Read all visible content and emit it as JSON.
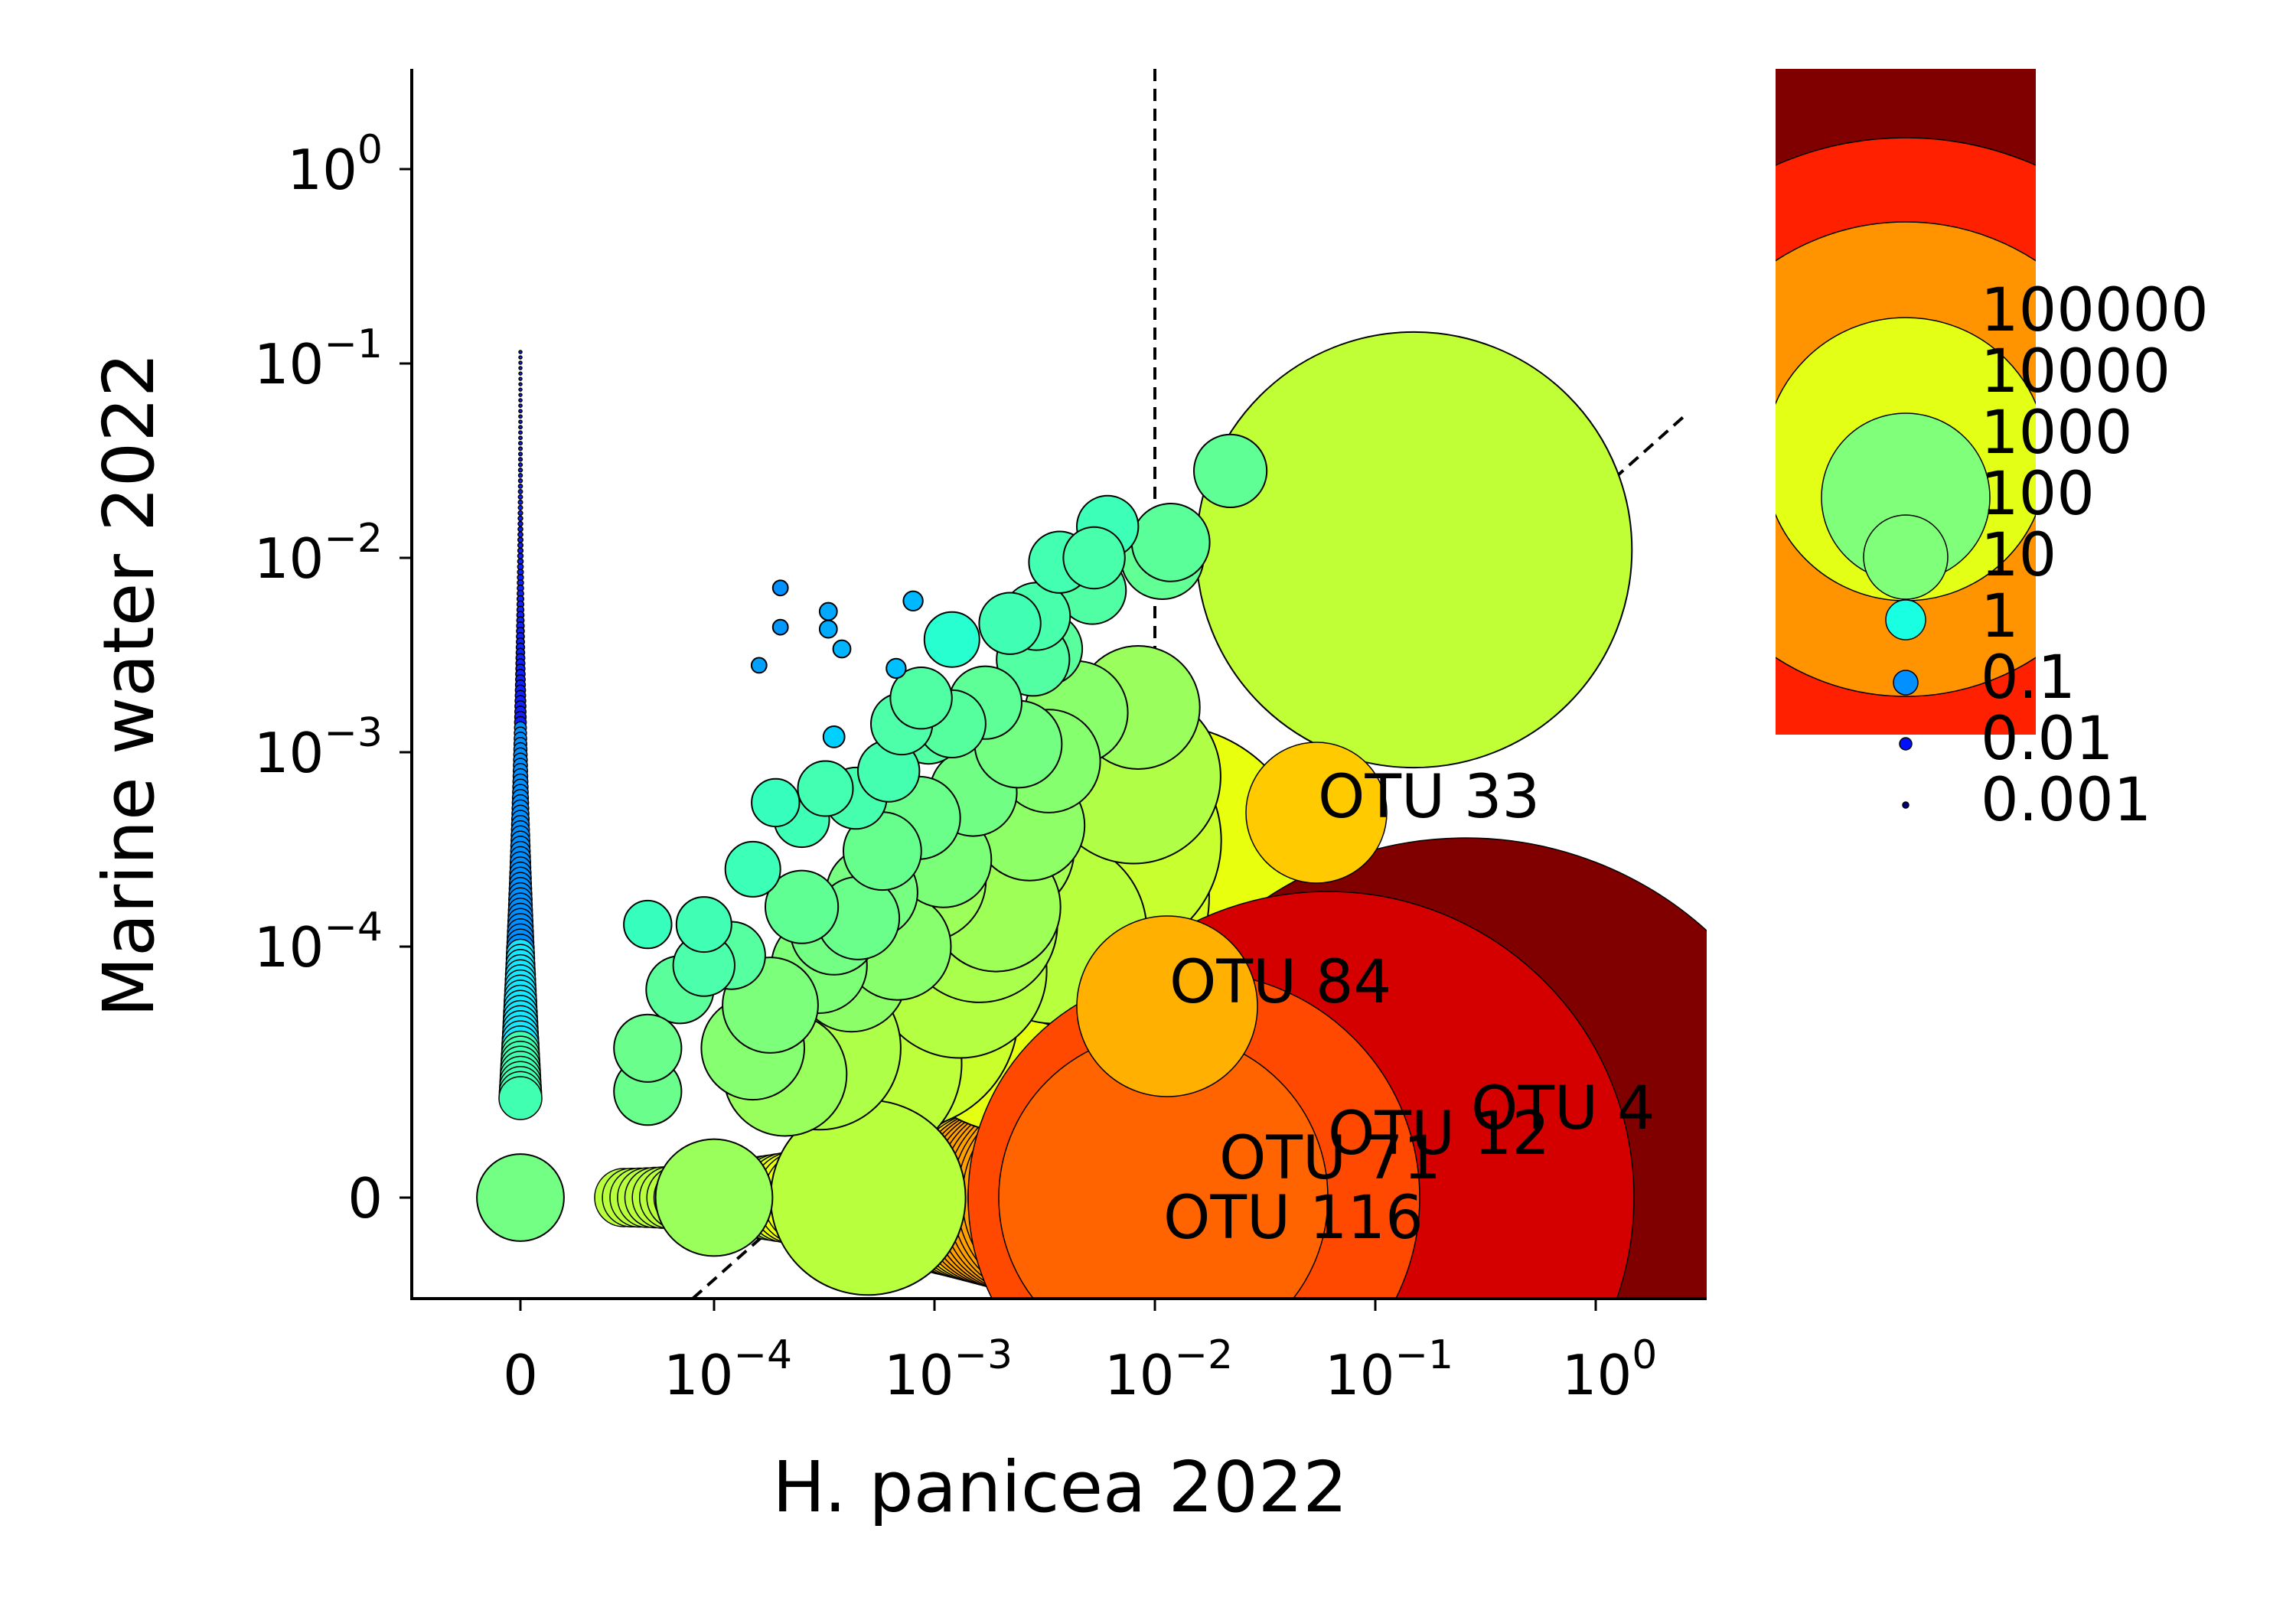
{
  "chart_data": {
    "type": "scatter",
    "title": "",
    "xlabel": "H. panicea 2022",
    "ylabel": "Marine water 2022",
    "x_scale": "symlog",
    "y_scale": "symlog",
    "x_ticks": [
      {
        "value": 0,
        "base": "0",
        "exp": ""
      },
      {
        "value": 0.0001,
        "base": "10",
        "exp": "−4"
      },
      {
        "value": 0.001,
        "base": "10",
        "exp": "−3"
      },
      {
        "value": 0.01,
        "base": "10",
        "exp": "−2"
      },
      {
        "value": 0.1,
        "base": "10",
        "exp": "−1"
      },
      {
        "value": 1,
        "base": "10",
        "exp": "0"
      }
    ],
    "y_ticks": [
      {
        "value": 0,
        "base": "0",
        "exp": ""
      },
      {
        "value": 0.0001,
        "base": "10",
        "exp": "−4"
      },
      {
        "value": 0.001,
        "base": "10",
        "exp": "−3"
      },
      {
        "value": 0.01,
        "base": "10",
        "exp": "−2"
      },
      {
        "value": 0.1,
        "base": "10",
        "exp": "−1"
      },
      {
        "value": 1,
        "base": "10",
        "exp": "0"
      }
    ],
    "reference_lines": [
      "x = 0.01 (vertical, dashed)",
      "y = x (diagonal, dashed)"
    ],
    "colormap": "jet (color encodes fold ratio)",
    "size_legend": {
      "labels": [
        "100000",
        "10000",
        "1000",
        "100",
        "10",
        "1",
        "0.1",
        "0.01",
        "0.001"
      ],
      "colors": [
        "#800000",
        "#ff2000",
        "#ff9400",
        "#e2ff15",
        "#80ff7a",
        "#19ffe2",
        "#0090ff",
        "#0010ff",
        "#000080"
      ]
    },
    "labeled_points": [
      {
        "label": "OTU 4",
        "x": 0.3,
        "y": 0,
        "size": 100000,
        "color": "#800000"
      },
      {
        "label": "OTU 12",
        "x": 0.06,
        "y": 0,
        "size": 60000,
        "color": "#d40000"
      },
      {
        "label": "OTU 71",
        "x": 0.025,
        "y": 0,
        "size": 20000,
        "color": "#ff4800"
      },
      {
        "label": "OTU 116",
        "x": 0.012,
        "y": 0,
        "size": 12000,
        "color": "#ff6400"
      },
      {
        "label": "OTU 84",
        "x": 0.015,
        "y": 5e-05,
        "size": 1100,
        "color": "#ffb000"
      },
      {
        "label": "OTU 33",
        "x": 0.055,
        "y": 0.0005,
        "size": 600,
        "color": "#ffca00"
      }
    ],
    "points": [
      {
        "x": 0.15,
        "y": 0.011,
        "size": 250,
        "color": "#c0ff36"
      },
      {
        "x": 0.022,
        "y": 0.028,
        "size": 7,
        "color": "#60ff96"
      },
      {
        "x": 0.0118,
        "y": 0.012,
        "size": 8,
        "color": "#5aff9a"
      },
      {
        "x": 0.0108,
        "y": 0.01,
        "size": 9,
        "color": "#62ff94"
      },
      {
        "x": 0.0061,
        "y": 0.0145,
        "size": 5,
        "color": "#3cffb8"
      },
      {
        "x": 0.0037,
        "y": 0.0095,
        "size": 5,
        "color": "#42ffb2"
      },
      {
        "x": 0.0053,
        "y": 0.01,
        "size": 5,
        "color": "#48ffac"
      },
      {
        "x": 0.0052,
        "y": 0.0068,
        "size": 6,
        "color": "#50ffa4"
      },
      {
        "x": 0.0022,
        "y": 0.0046,
        "size": 5,
        "color": "#40ffb4"
      },
      {
        "x": 0.0029,
        "y": 0.005,
        "size": 6,
        "color": "#48ffac"
      },
      {
        "x": 0.0032,
        "y": 0.0034,
        "size": 7,
        "color": "#58ff9c"
      },
      {
        "x": 0.0028,
        "y": 0.003,
        "size": 7,
        "color": "#52ffa2"
      },
      {
        "x": 0.0012,
        "y": 0.0038,
        "size": 4,
        "color": "#28ffd0"
      },
      {
        "x": 0.0002,
        "y": 0.007,
        "size": 0.3,
        "color": "#0090ff"
      },
      {
        "x": 0.0002,
        "y": 0.0044,
        "size": 0.3,
        "color": "#0098ff"
      },
      {
        "x": 0.00016,
        "y": 0.0028,
        "size": 0.3,
        "color": "#00a0ff"
      },
      {
        "x": 0.00033,
        "y": 0.0053,
        "size": 0.4,
        "color": "#00a8ff"
      },
      {
        "x": 0.00033,
        "y": 0.0043,
        "size": 0.4,
        "color": "#00aaff"
      },
      {
        "x": 0.00038,
        "y": 0.0034,
        "size": 0.4,
        "color": "#00b4ff"
      },
      {
        "x": 0.0008,
        "y": 0.006,
        "size": 0.5,
        "color": "#00b8ff"
      },
      {
        "x": 0.00067,
        "y": 0.0027,
        "size": 0.5,
        "color": "#00c0ff"
      },
      {
        "x": 0.00035,
        "y": 0.0012,
        "size": 0.6,
        "color": "#00d0ff"
      },
      {
        "x": 0.0084,
        "y": 0.0017,
        "size": 20,
        "color": "#9aff5c"
      },
      {
        "x": 0.0044,
        "y": 0.0016,
        "size": 14,
        "color": "#8aff6c"
      },
      {
        "x": 0.008,
        "y": 0.00075,
        "size": 40,
        "color": "#b0ff46"
      },
      {
        "x": 0.006,
        "y": 0.00035,
        "size": 70,
        "color": "#c8ff2e"
      },
      {
        "x": 0.011,
        "y": 0.00025,
        "size": 110,
        "color": "#e8ff0e"
      },
      {
        "x": 0.0045,
        "y": 0.00018,
        "size": 90,
        "color": "#d8ff1e"
      },
      {
        "x": 0.0065,
        "y": 9e-05,
        "size": 140,
        "color": "#f4f400"
      },
      {
        "x": 0.0025,
        "y": 6e-05,
        "size": 110,
        "color": "#e4ff12"
      },
      {
        "x": 0.0021,
        "y": 0.00032,
        "size": 25,
        "color": "#a4ff52"
      },
      {
        "x": 0.0009,
        "y": 0.00022,
        "size": 20,
        "color": "#9cff5a"
      },
      {
        "x": 0.00072,
        "y": 4.5e-05,
        "size": 70,
        "color": "#caff2c"
      },
      {
        "x": 0.0016,
        "y": 0.00013,
        "size": 32,
        "color": "#aaff4c"
      },
      {
        "x": 0.00035,
        "y": 0.00012,
        "size": 10,
        "color": "#72ff84"
      },
      {
        "x": 0.0003,
        "y": 8e-05,
        "size": 12,
        "color": "#7eff78"
      },
      {
        "x": 0.0003,
        "y": 3e-05,
        "size": 35,
        "color": "#aeff48"
      },
      {
        "x": 0.00048,
        "y": 2.5e-05,
        "size": 50,
        "color": "#bcff3a"
      },
      {
        "x": 0.00018,
        "y": 5e-05,
        "size": 12,
        "color": "#7cff7a"
      },
      {
        "x": 0.00015,
        "y": 3e-05,
        "size": 14,
        "color": "#86ff70"
      },
      {
        "x": 0.00012,
        "y": 9e-05,
        "size": 6,
        "color": "#56ffa0"
      },
      {
        "x": 9e-05,
        "y": 8e-05,
        "size": 5,
        "color": "#4cffaa"
      },
      {
        "x": 9e-05,
        "y": 0.00013,
        "size": 4,
        "color": "#40ffb4"
      },
      {
        "x": 5e-05,
        "y": 0.00013,
        "size": 3,
        "color": "#36ffbe"
      },
      {
        "x": 7e-05,
        "y": 6e-05,
        "size": 6,
        "color": "#5aff9c"
      },
      {
        "x": 5e-05,
        "y": 1.8e-05,
        "size": 6,
        "color": "#6aff8c"
      },
      {
        "x": 0.00015,
        "y": 0.00025,
        "size": 4,
        "color": "#3cffb8"
      },
      {
        "x": 0.00019,
        "y": 0.00055,
        "size": 3,
        "color": "#36ffbe"
      },
      {
        "x": 0.00025,
        "y": 0.00045,
        "size": 4,
        "color": "#3effb6"
      },
      {
        "x": 0.00032,
        "y": 0.00065,
        "size": 4,
        "color": "#42ffb2"
      },
      {
        "x": 0.00044,
        "y": 0.00058,
        "size": 5,
        "color": "#46ffae"
      },
      {
        "x": 0.00062,
        "y": 0.0008,
        "size": 5,
        "color": "#44ffb0"
      },
      {
        "x": 0.00071,
        "y": 0.0014,
        "size": 5,
        "color": "#4cffa8"
      },
      {
        "x": 0.00087,
        "y": 0.0019,
        "size": 5,
        "color": "#50ffa4"
      },
      {
        "x": 0.00094,
        "y": 0.0013,
        "size": 6,
        "color": "#52ffa2"
      },
      {
        "x": 0.0012,
        "y": 0.0014,
        "size": 6,
        "color": "#56ff9e"
      },
      {
        "x": 0.0017,
        "y": 0.0018,
        "size": 7,
        "color": "#5eff96"
      },
      {
        "x": 0.0015,
        "y": 0.00062,
        "size": 10,
        "color": "#70ff84"
      },
      {
        "x": 0.00085,
        "y": 0.00046,
        "size": 9,
        "color": "#6aff8a"
      },
      {
        "x": 0.00058,
        "y": 0.00031,
        "size": 8,
        "color": "#66ff8e"
      },
      {
        "x": 0.0011,
        "y": 0.00028,
        "size": 12,
        "color": "#7cff78"
      },
      {
        "x": 0.0027,
        "y": 0.00042,
        "size": 16,
        "color": "#8eff66"
      },
      {
        "x": 0.0033,
        "y": 0.0009,
        "size": 14,
        "color": "#86ff6e"
      },
      {
        "x": 0.0024,
        "y": 0.0011,
        "size": 10,
        "color": "#72ff82"
      },
      {
        "x": 0.0019,
        "y": 0.00016,
        "size": 22,
        "color": "#9eff56"
      },
      {
        "x": 0.00052,
        "y": 0.00019,
        "size": 11,
        "color": "#76ff80"
      },
      {
        "x": 0.00068,
        "y": 0.0001,
        "size": 15,
        "color": "#88ff6c"
      },
      {
        "x": 0.00042,
        "y": 7e-05,
        "size": 16,
        "color": "#8cff68"
      },
      {
        "x": 0.00021,
        "y": 2.2e-05,
        "size": 20,
        "color": "#98ff5c"
      },
      {
        "x": 0.0013,
        "y": 7.5e-05,
        "size": 40,
        "color": "#b4ff42"
      },
      {
        "x": 0.0035,
        "y": 0.00012,
        "size": 45,
        "color": "#b8ff3e"
      },
      {
        "x": 0.00045,
        "y": 0.00014,
        "size": 9,
        "color": "#6aff8a"
      },
      {
        "x": 0.00025,
        "y": 0.00016,
        "size": 7,
        "color": "#60ff94"
      },
      {
        "x": 0.0005,
        "y": 0,
        "size": 50,
        "color": "#b8ff3e"
      },
      {
        "x": 0.0001,
        "y": 0,
        "size": 18,
        "color": "#9aff5a"
      },
      {
        "x": 0,
        "y": 0,
        "size": 10,
        "color": "#72ff84"
      },
      {
        "x": 5e-05,
        "y": 3e-05,
        "size": 6,
        "color": "#6aff8c"
      }
    ]
  }
}
